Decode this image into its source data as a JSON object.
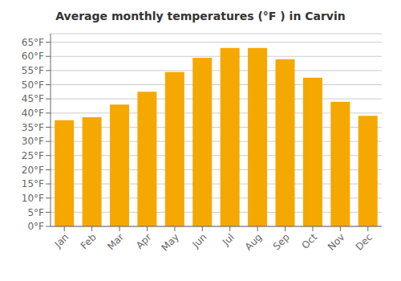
{
  "chart_data": {
    "type": "bar",
    "title": "Average monthly temperatures (°F ) in Carvin",
    "categories": [
      "Jan",
      "Feb",
      "Mar",
      "Apr",
      "May",
      "Jun",
      "Jul",
      "Aug",
      "Sep",
      "Oct",
      "Nov",
      "Dec"
    ],
    "values": [
      37.5,
      38.5,
      43.0,
      47.5,
      54.5,
      59.5,
      63.0,
      63.0,
      59.0,
      52.5,
      44.0,
      39.0
    ],
    "color": "#F5A800",
    "ylim": [
      0,
      68
    ],
    "yticks": [
      {
        "value": 0,
        "label": "0°F"
      },
      {
        "value": 5,
        "label": "5°F"
      },
      {
        "value": 10,
        "label": "10°F"
      },
      {
        "value": 15,
        "label": "15°F"
      },
      {
        "value": 20,
        "label": "20°F"
      },
      {
        "value": 25,
        "label": "25°F"
      },
      {
        "value": 30,
        "label": "30°F"
      },
      {
        "value": 35,
        "label": "35°F"
      },
      {
        "value": 40,
        "label": "40°F"
      },
      {
        "value": 45,
        "label": "45°F"
      },
      {
        "value": 50,
        "label": "50°F"
      },
      {
        "value": 55,
        "label": "55°F"
      },
      {
        "value": 60,
        "label": "60°F"
      },
      {
        "value": 65,
        "label": "65°F"
      }
    ],
    "grid": true
  }
}
